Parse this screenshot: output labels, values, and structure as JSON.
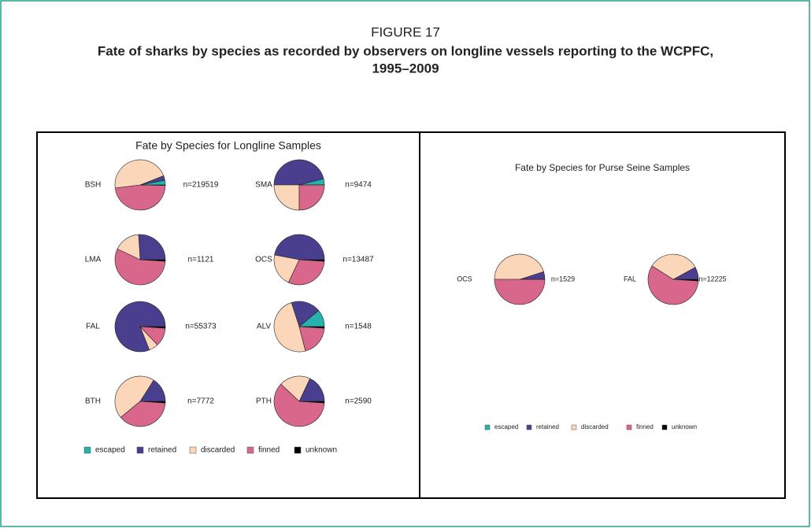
{
  "figure": {
    "label": "FIGURE 17",
    "title_lines": [
      "Fate of sharks by species as recorded by observers on longline vessels reporting to the WCPFC,",
      "1995–2009"
    ]
  },
  "chart_data": [
    {
      "type": "pie",
      "title": "Fate by Species for Longline Samples",
      "categories": [
        "escaped",
        "retained",
        "discarded",
        "finned",
        "unknown"
      ],
      "colors": [
        "#26b3ae",
        "#4a3f8e",
        "#fcd6b8",
        "#d9668b",
        "#000000"
      ],
      "pies": [
        {
          "name": "BSH",
          "n_label": "n=219519",
          "values": [
            3,
            3,
            46,
            47.7,
            0.3
          ]
        },
        {
          "name": "SMA",
          "n_label": "n=9474",
          "values": [
            4,
            46,
            25,
            25,
            0
          ]
        },
        {
          "name": "LMA",
          "n_label": "n=1121",
          "values": [
            0,
            26,
            17,
            56,
            1
          ]
        },
        {
          "name": "OCS",
          "n_label": "n=13487",
          "values": [
            0,
            47,
            21,
            31,
            1
          ]
        },
        {
          "name": "FAL",
          "n_label": "n=55373",
          "values": [
            0,
            81,
            6,
            12,
            1
          ]
        },
        {
          "name": "ALV",
          "n_label": "n=1548",
          "values": [
            11,
            19,
            49,
            20,
            1
          ]
        },
        {
          "name": "BTH",
          "n_label": "n=7772",
          "values": [
            0,
            16,
            45,
            38,
            1
          ]
        },
        {
          "name": "PTH",
          "n_label": "n=2590",
          "values": [
            0,
            18,
            20,
            61,
            1
          ]
        }
      ]
    },
    {
      "type": "pie",
      "title": "Fate by Species for Purse Seine Samples",
      "categories": [
        "escaped",
        "retained",
        "discarded",
        "finned",
        "unknown"
      ],
      "colors": [
        "#26b3ae",
        "#4a3f8e",
        "#fcd6b8",
        "#d9668b",
        "#000000"
      ],
      "pies": [
        {
          "name": "OCS",
          "n_label": "n=1529",
          "values": [
            0,
            5,
            45,
            50,
            0
          ]
        },
        {
          "name": "FAL",
          "n_label": "n=12225",
          "values": [
            0,
            8,
            33,
            58,
            1
          ]
        }
      ]
    }
  ]
}
